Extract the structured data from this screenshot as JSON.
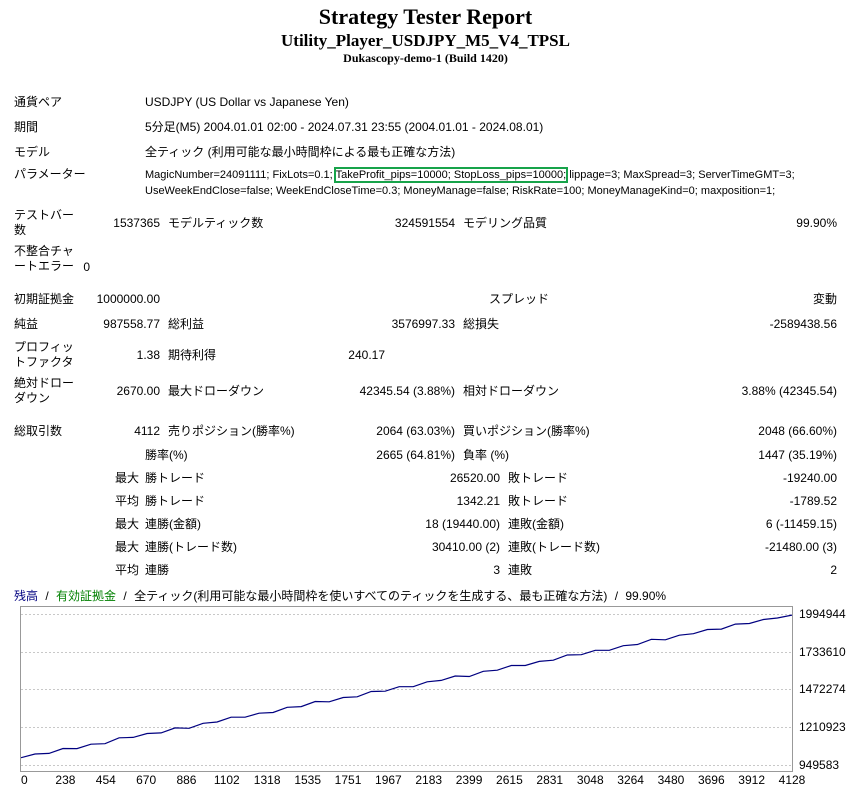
{
  "header": {
    "title": "Strategy Tester Report",
    "subtitle": "Utility_Player_USDJPY_M5_V4_TPSL",
    "build": "Dukascopy-demo-1 (Build 1420)"
  },
  "info": {
    "symbol": {
      "label": "通貨ペア",
      "value": "USDJPY (US Dollar vs Japanese Yen)"
    },
    "period": {
      "label": "期間",
      "value": "5分足(M5) 2004.01.01 02:00 - 2024.07.31 23:55 (2004.01.01 - 2024.08.01)"
    },
    "model": {
      "label": "モデル",
      "value": "全ティック (利用可能な最小時間枠による最も正確な方法)"
    },
    "parameters": {
      "label": "パラメーター",
      "before": "MagicNumber=24091111; FixLots=0.1; ",
      "highlighted": "TakeProfit_pips=10000; StopLoss_pips=10000;",
      "after": " lippage=3; MaxSpread=3; ServerTimeGMT=3;",
      "line2": "UseWeekEndClose=false; WeekEndCloseTime=0.3; MoneyManage=false; RiskRate=100; MoneyManageKind=0; maxposition=1;"
    }
  },
  "stats": {
    "bars": {
      "label": "テストバー数",
      "value": "1537365",
      "label2": "モデルティック数",
      "value2": "324591554",
      "label3": "モデリング品質",
      "value3": "99.90%"
    },
    "mismatch": {
      "label": "不整合チャートエラー",
      "value": "0"
    },
    "deposit": {
      "label": "初期証拠金",
      "value": "1000000.00",
      "label3": "スプレッド",
      "value3": "変動"
    },
    "net": {
      "label": "純益",
      "value": "987558.77",
      "label2": "総利益",
      "value2": "3576997.33",
      "label3": "総損失",
      "value3": "-2589438.56"
    },
    "pf": {
      "label": "プロフィットファクタ",
      "value": "1.38",
      "label2": "期待利得",
      "value2": "240.17"
    },
    "dd": {
      "label": "絶対ドローダウン",
      "value": "2670.00",
      "label2": "最大ドローダウン",
      "value2": "42345.54 (3.88%)",
      "label3": "相対ドローダウン",
      "value3": "3.88% (42345.54)"
    },
    "trades": {
      "label": "総取引数",
      "value": "4112",
      "label2": "売りポジション(勝率%)",
      "value2": "2064 (63.03%)",
      "label3": "買いポジション(勝率%)",
      "value3": "2048 (66.60%)"
    },
    "winrate": {
      "label2": "勝率(%)",
      "value2": "2665 (64.81%)",
      "label3": "負率 (%)",
      "value3": "1447 (35.19%)"
    },
    "largest": {
      "qual": "最大",
      "label2": "勝トレード",
      "value2": "26520.00",
      "label3": "敗トレード",
      "value3": "-19240.00"
    },
    "average": {
      "qual": "平均",
      "label2": "勝トレード",
      "value2": "1342.21",
      "label3": "敗トレード",
      "value3": "-1789.52"
    },
    "maxconsec_amount": {
      "qual": "最大",
      "label2": "連勝(金額)",
      "value2": "18 (19440.00)",
      "label3": "連敗(金額)",
      "value3": "6 (-11459.15)"
    },
    "maxconsec_count": {
      "qual": "最大",
      "label2": "連勝(トレード数)",
      "value2": "30410.00 (2)",
      "label3": "連敗(トレード数)",
      "value3": "-21480.00 (3)"
    },
    "avgconsec": {
      "qual": "平均",
      "label2": "連勝",
      "value2": "3",
      "label3": "連敗",
      "value3": "2"
    }
  },
  "colors": {
    "highlight_box": "#17a34a",
    "balance_line": "#000080",
    "equity_green": "#008000",
    "grid": "#c8c8c8",
    "chart_border": "#999999"
  },
  "chart_data": {
    "type": "line",
    "legend": {
      "balance": "残高",
      "equity": "有効証拠金",
      "model": "全ティック(利用可能な最小時間枠を使いすべてのティックを生成する、最も正確な方法)",
      "quality": "99.90%",
      "sep": "/"
    },
    "x_range": [
      0,
      4128
    ],
    "y_range": [
      949583,
      1994944
    ],
    "x_ticks": [
      0,
      238,
      454,
      670,
      886,
      1102,
      1318,
      1535,
      1751,
      1967,
      2183,
      2399,
      2615,
      2831,
      3048,
      3264,
      3480,
      3696,
      3912,
      4128
    ],
    "y_ticks": [
      949583,
      1210923,
      1472274,
      1733610,
      1994944
    ],
    "series": [
      {
        "name": "残高",
        "color": "#000080",
        "points": [
          [
            0,
            1000000
          ],
          [
            75,
            1025900
          ],
          [
            150,
            1029900
          ],
          [
            225,
            1063800
          ],
          [
            300,
            1062800
          ],
          [
            375,
            1093700
          ],
          [
            450,
            1096700
          ],
          [
            525,
            1137600
          ],
          [
            600,
            1140600
          ],
          [
            675,
            1167500
          ],
          [
            750,
            1171500
          ],
          [
            825,
            1206400
          ],
          [
            900,
            1203400
          ],
          [
            975,
            1238300
          ],
          [
            1050,
            1247300
          ],
          [
            1125,
            1280200
          ],
          [
            1200,
            1280200
          ],
          [
            1275,
            1308100
          ],
          [
            1350,
            1313100
          ],
          [
            1425,
            1349000
          ],
          [
            1500,
            1354000
          ],
          [
            1575,
            1388900
          ],
          [
            1650,
            1386800
          ],
          [
            1725,
            1416800
          ],
          [
            1800,
            1421700
          ],
          [
            1875,
            1458700
          ],
          [
            1950,
            1460600
          ],
          [
            2025,
            1491600
          ],
          [
            2100,
            1491500
          ],
          [
            2175,
            1525500
          ],
          [
            2250,
            1535400
          ],
          [
            2325,
            1565400
          ],
          [
            2400,
            1562300
          ],
          [
            2475,
            1598300
          ],
          [
            2550,
            1606200
          ],
          [
            2625,
            1638200
          ],
          [
            2700,
            1638100
          ],
          [
            2775,
            1667100
          ],
          [
            2850,
            1675000
          ],
          [
            2925,
            1711000
          ],
          [
            3000,
            1712900
          ],
          [
            3075,
            1743800
          ],
          [
            3150,
            1743800
          ],
          [
            3225,
            1775700
          ],
          [
            3300,
            1783700
          ],
          [
            3375,
            1819600
          ],
          [
            3450,
            1816600
          ],
          [
            3525,
            1848500
          ],
          [
            3600,
            1858500
          ],
          [
            3675,
            1887400
          ],
          [
            3750,
            1890400
          ],
          [
            3825,
            1925300
          ],
          [
            3900,
            1929300
          ],
          [
            3975,
            1957200
          ],
          [
            4050,
            1967200
          ],
          [
            4128,
            1987559
          ]
        ]
      }
    ]
  }
}
